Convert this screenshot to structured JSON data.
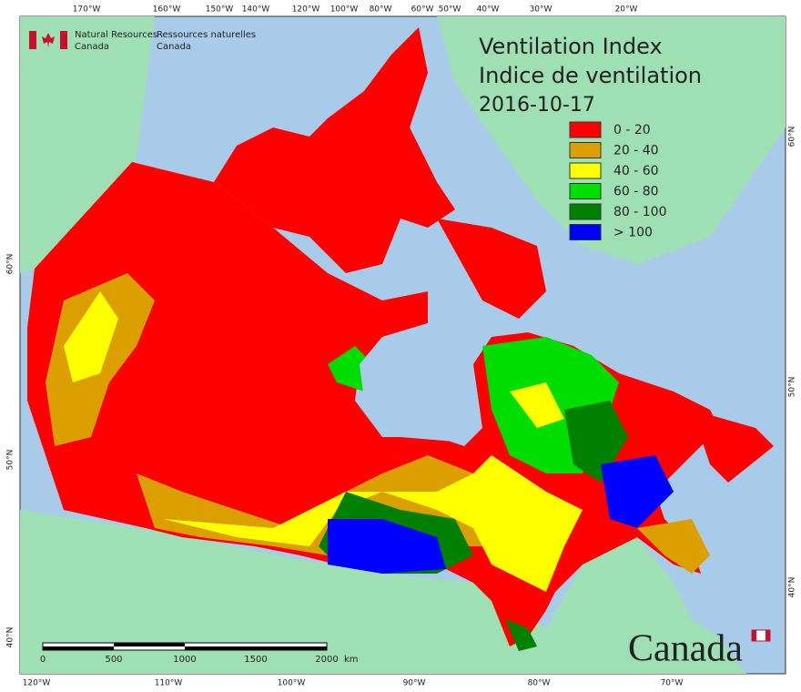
{
  "header": {
    "org_en": [
      "Natural Resources",
      "Canada"
    ],
    "org_fr": [
      "Ressources naturelles",
      "Canada"
    ]
  },
  "title": [
    "Ventilation Index",
    "Indice de ventilation",
    "2016-10-17"
  ],
  "legend": [
    {
      "label": "0 - 20",
      "color": "#ff0000"
    },
    {
      "label": "20 - 40",
      "color": "#dba000"
    },
    {
      "label": "40 - 60",
      "color": "#ffff00"
    },
    {
      "label": "60 - 80",
      "color": "#00dd00"
    },
    {
      "label": "80 - 100",
      "color": "#008000"
    },
    {
      "label": "> 100",
      "color": "#0000ff"
    }
  ],
  "axes": {
    "top": [
      "170°W",
      "160°W",
      "150°W",
      "140°W",
      "120°W",
      "100°W",
      "80°W",
      "60°W",
      "50°W",
      "40°W",
      "30°W",
      "20°W"
    ],
    "bottom": [
      "120°W",
      "110°W",
      "100°W",
      "90°W",
      "80°W",
      "70°W"
    ],
    "left": [
      "60°N",
      "50°N",
      "40°N"
    ],
    "right": [
      "60°N",
      "50°N",
      "40°N"
    ]
  },
  "scale_bar": {
    "labels": [
      "0",
      "500",
      "1000",
      "1500",
      "2000"
    ],
    "unit": "km"
  },
  "wordmark": "Canada"
}
